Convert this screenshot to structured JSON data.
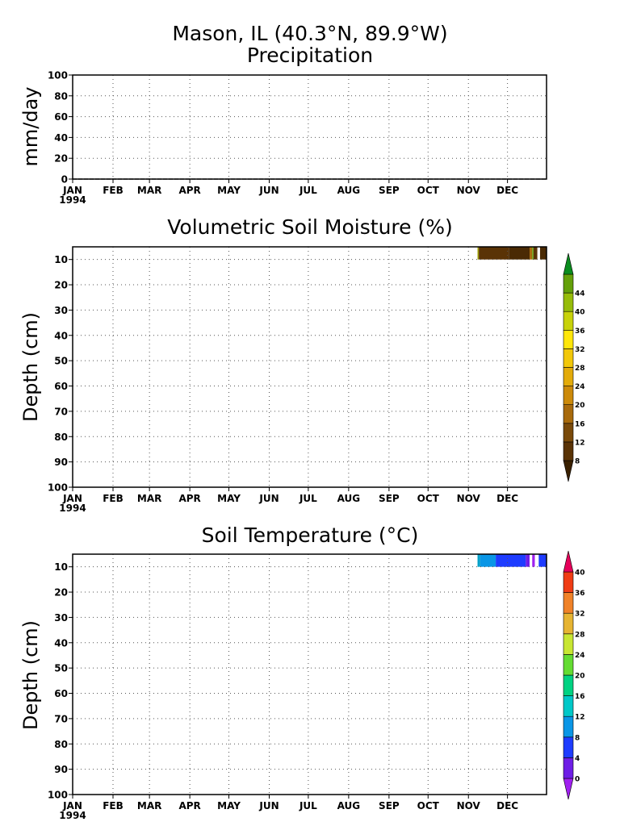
{
  "header": {
    "station": "Mason, IL   (40.3°N, 89.9°W)"
  },
  "months": [
    "JAN",
    "FEB",
    "MAR",
    "APR",
    "MAY",
    "JUN",
    "JUL",
    "AUG",
    "SEP",
    "OCT",
    "NOV",
    "DEC"
  ],
  "year_label": "1994",
  "chart_data": [
    {
      "type": "line",
      "title": "Precipitation",
      "ylabel": "mm/day",
      "xlabel": "",
      "x_range": [
        "1994-01-01",
        "1994-12-31"
      ],
      "ylim": [
        0,
        100
      ],
      "yticks": [
        0,
        20,
        40,
        60,
        80,
        100
      ],
      "grid": true,
      "series": [
        {
          "values": [
            0,
            0,
            0,
            0,
            0,
            0,
            0,
            0,
            0,
            0,
            0,
            0
          ]
        }
      ]
    },
    {
      "type": "heatmap",
      "title": "Volumetric Soil Moisture (%)",
      "ylabel": "Depth (cm)",
      "xlabel": "",
      "x_range": [
        "1994-01-01",
        "1994-12-31"
      ],
      "ylim": [
        100,
        5
      ],
      "yticks": [
        10,
        20,
        30,
        40,
        50,
        60,
        70,
        80,
        90,
        100
      ],
      "grid": true,
      "colorbar": {
        "labels": [
          "8",
          "12",
          "16",
          "20",
          "24",
          "28",
          "32",
          "36",
          "40",
          "44"
        ],
        "colors": [
          "#3a2000",
          "#5a3306",
          "#7a4a0a",
          "#a86a0c",
          "#cc8a0a",
          "#e3ab0a",
          "#f2c80a",
          "#ffe60a",
          "#c8d20a",
          "#96bc0a",
          "#64a00a",
          "#0a8c1e"
        ]
      },
      "cells": [
        {
          "start": "1994-11-08",
          "end": "1994-11-09",
          "depth_top": 5,
          "depth_bottom": 10,
          "color": "#9c9c00"
        },
        {
          "start": "1994-11-09",
          "end": "1994-12-02",
          "depth_top": 5,
          "depth_bottom": 10,
          "color": "#5a3306"
        },
        {
          "start": "1994-12-02",
          "end": "1994-12-18",
          "depth_top": 5,
          "depth_bottom": 10,
          "color": "#4a2a04"
        },
        {
          "start": "1994-12-18",
          "end": "1994-12-20",
          "depth_top": 5,
          "depth_bottom": 10,
          "color": "#a86a0c"
        },
        {
          "start": "1994-12-20",
          "end": "1994-12-21",
          "depth_top": 5,
          "depth_bottom": 10,
          "color": "#64a00a"
        },
        {
          "start": "1994-12-21",
          "end": "1994-12-24",
          "depth_top": 5,
          "depth_bottom": 10,
          "color": "#5a3306"
        },
        {
          "start": "1994-12-24",
          "end": "1994-12-26",
          "depth_top": 5,
          "depth_bottom": 10,
          "color": "#ffffff"
        },
        {
          "start": "1994-12-26",
          "end": "1994-12-31",
          "depth_top": 5,
          "depth_bottom": 10,
          "color": "#4a2a04"
        }
      ]
    },
    {
      "type": "heatmap",
      "title": "Soil Temperature (°C)",
      "ylabel": "Depth (cm)",
      "xlabel": "",
      "x_range": [
        "1994-01-01",
        "1994-12-31"
      ],
      "ylim": [
        100,
        5
      ],
      "yticks": [
        10,
        20,
        30,
        40,
        50,
        60,
        70,
        80,
        90,
        100
      ],
      "grid": true,
      "colorbar": {
        "labels": [
          "0",
          "4",
          "8",
          "12",
          "16",
          "20",
          "24",
          "28",
          "32",
          "36",
          "40"
        ],
        "colors": [
          "#a020f0",
          "#6e1ee6",
          "#1e3cff",
          "#0a96e6",
          "#00c8c8",
          "#00d282",
          "#64dc32",
          "#c8e632",
          "#e6b432",
          "#f08228",
          "#f03c14",
          "#e6005a"
        ]
      },
      "cells": [
        {
          "start": "1994-11-08",
          "end": "1994-11-10",
          "depth_top": 5,
          "depth_bottom": 10,
          "color": "#00a0c8"
        },
        {
          "start": "1994-11-10",
          "end": "1994-11-22",
          "depth_top": 5,
          "depth_bottom": 10,
          "color": "#0a96e6"
        },
        {
          "start": "1994-11-22",
          "end": "1994-12-15",
          "depth_top": 5,
          "depth_bottom": 10,
          "color": "#1e3cff"
        },
        {
          "start": "1994-12-15",
          "end": "1994-12-18",
          "depth_top": 5,
          "depth_bottom": 10,
          "color": "#6e1ee6"
        },
        {
          "start": "1994-12-18",
          "end": "1994-12-20",
          "depth_top": 5,
          "depth_bottom": 10,
          "color": "#ffffff"
        },
        {
          "start": "1994-12-20",
          "end": "1994-12-22",
          "depth_top": 5,
          "depth_bottom": 10,
          "color": "#a020f0"
        },
        {
          "start": "1994-12-22",
          "end": "1994-12-25",
          "depth_top": 5,
          "depth_bottom": 10,
          "color": "#ffffff"
        },
        {
          "start": "1994-12-25",
          "end": "1994-12-31",
          "depth_top": 5,
          "depth_bottom": 10,
          "color": "#1e3cff"
        }
      ]
    }
  ]
}
